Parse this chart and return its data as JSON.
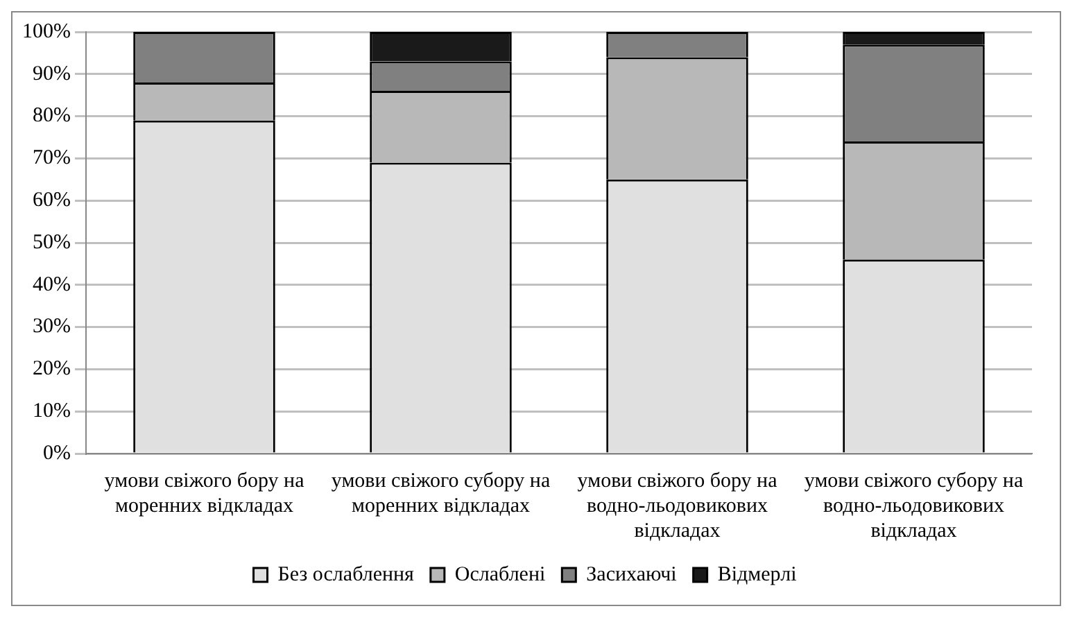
{
  "chart_data": {
    "type": "bar",
    "stacked": true,
    "categories": [
      "умови свіжого бору на моренних відкладах",
      "умови свіжого субору на моренних відкладах",
      "умови свіжого бору на водно-льодовикових відкладах",
      "умови свіжого субору на водно-льодовикових відкладах"
    ],
    "series": [
      {
        "name": "Без ослаблення",
        "color": "#e0e0e0",
        "values": [
          79,
          69,
          65,
          46
        ]
      },
      {
        "name": "Ослаблені",
        "color": "#b8b8b8",
        "values": [
          9,
          17,
          29,
          28
        ]
      },
      {
        "name": "Засихаючі",
        "color": "#808080",
        "values": [
          12,
          7,
          6,
          23
        ]
      },
      {
        "name": "Відмерлі",
        "color": "#1a1a1a",
        "values": [
          0,
          7,
          0,
          3
        ]
      }
    ],
    "ylim": [
      0,
      100
    ],
    "yticks": [
      {
        "value": 0,
        "label": "0%"
      },
      {
        "value": 10,
        "label": "10%"
      },
      {
        "value": 20,
        "label": "20%"
      },
      {
        "value": 30,
        "label": "30%"
      },
      {
        "value": 40,
        "label": "40%"
      },
      {
        "value": 50,
        "label": "50%"
      },
      {
        "value": 60,
        "label": "60%"
      },
      {
        "value": 70,
        "label": "70%"
      },
      {
        "value": 80,
        "label": "80%"
      },
      {
        "value": 90,
        "label": "90%"
      },
      {
        "value": 100,
        "label": "100%"
      }
    ],
    "grid": "y",
    "legend": "bottom"
  }
}
